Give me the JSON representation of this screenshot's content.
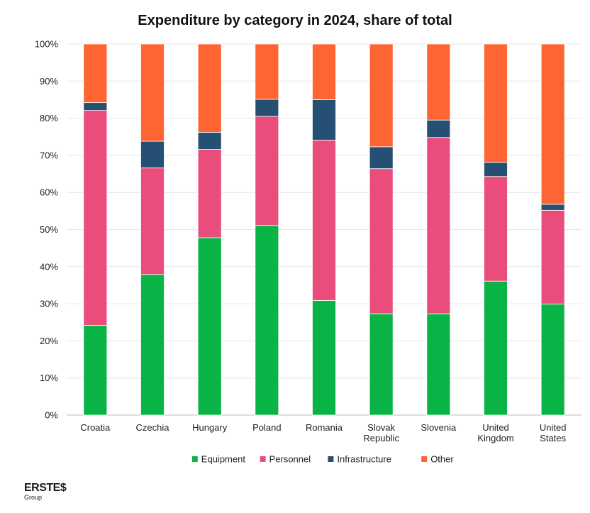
{
  "chart_data": {
    "type": "bar",
    "stacked": true,
    "title": "Expenditure by category in 2024, share of total",
    "categories": [
      [
        "Croatia"
      ],
      [
        "Czechia"
      ],
      [
        "Hungary"
      ],
      [
        "Poland"
      ],
      [
        "Romania"
      ],
      [
        "Slovak",
        "Republic"
      ],
      [
        "Slovenia"
      ],
      [
        "United",
        "Kingdom"
      ],
      [
        "United",
        "States"
      ]
    ],
    "series": [
      {
        "name": "Equipment",
        "color": "#0ab345",
        "values": [
          24.2,
          37.9,
          47.8,
          51.1,
          30.9,
          27.3,
          27.3,
          36.1,
          29.9
        ]
      },
      {
        "name": "Personnel",
        "color": "#ea4c7c",
        "values": [
          57.9,
          28.7,
          23.8,
          29.4,
          43.2,
          39.1,
          47.5,
          28.2,
          25.3
        ]
      },
      {
        "name": "Infrastructure",
        "color": "#254f73",
        "values": [
          2.1,
          7.2,
          4.6,
          4.6,
          10.9,
          5.9,
          4.7,
          3.8,
          1.6
        ]
      },
      {
        "name": "Other",
        "color": "#ff6433",
        "values": [
          15.8,
          26.2,
          23.8,
          14.9,
          15.0,
          27.7,
          20.5,
          31.9,
          43.2
        ]
      }
    ],
    "ylim": [
      0,
      100
    ],
    "yticks": [
      "0%",
      "10%",
      "20%",
      "30%",
      "40%",
      "50%",
      "60%",
      "70%",
      "80%",
      "90%",
      "100%"
    ],
    "grid": true,
    "legend_position": "bottom"
  },
  "logo": {
    "word": "ERSTE",
    "symbol": "$",
    "sub": "Group"
  }
}
